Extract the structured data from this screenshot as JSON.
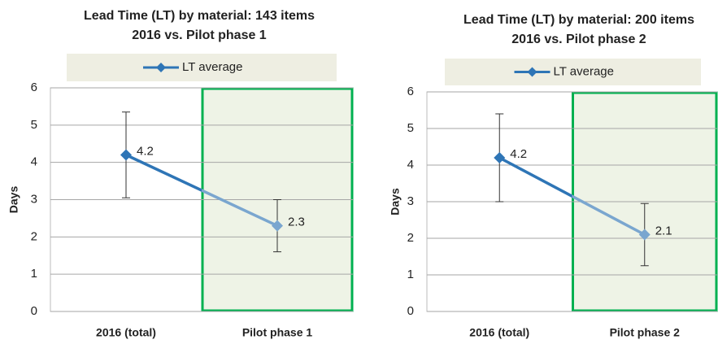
{
  "chart_data": [
    {
      "type": "line",
      "title": "Lead Time (LT) by material: 143 items",
      "subtitle": "2016 vs. Pilot phase 1",
      "y_label": "Days",
      "categories": [
        "2016 (total)",
        "Pilot phase 1"
      ],
      "series": [
        {
          "name": "LT average",
          "color": "#2e75b6",
          "highlight_color": "#7aa6cf",
          "values": [
            4.2,
            2.3
          ],
          "errors": [
            1.15,
            0.7
          ]
        }
      ],
      "ylim": [
        0,
        6
      ],
      "yticks": [
        0,
        1,
        2,
        3,
        4,
        5,
        6
      ],
      "grid": true,
      "legend": "top",
      "highlight_index": 1,
      "highlight_border": "#00b050",
      "highlight_fill": "#eef3e6"
    },
    {
      "type": "line",
      "title": "Lead Time (LT) by material: 200 items",
      "subtitle": "2016 vs. Pilot phase 2",
      "y_label": "Days",
      "categories": [
        "2016 (total)",
        "Pilot phase 2"
      ],
      "series": [
        {
          "name": "LT average",
          "color": "#2e75b6",
          "highlight_color": "#7aa6cf",
          "values": [
            4.2,
            2.1
          ],
          "errors": [
            1.2,
            0.85
          ]
        }
      ],
      "ylim": [
        0,
        6
      ],
      "yticks": [
        0,
        1,
        2,
        3,
        4,
        5,
        6
      ],
      "grid": true,
      "legend": "top",
      "highlight_index": 1,
      "highlight_border": "#00b050",
      "highlight_fill": "#eef3e6"
    }
  ]
}
